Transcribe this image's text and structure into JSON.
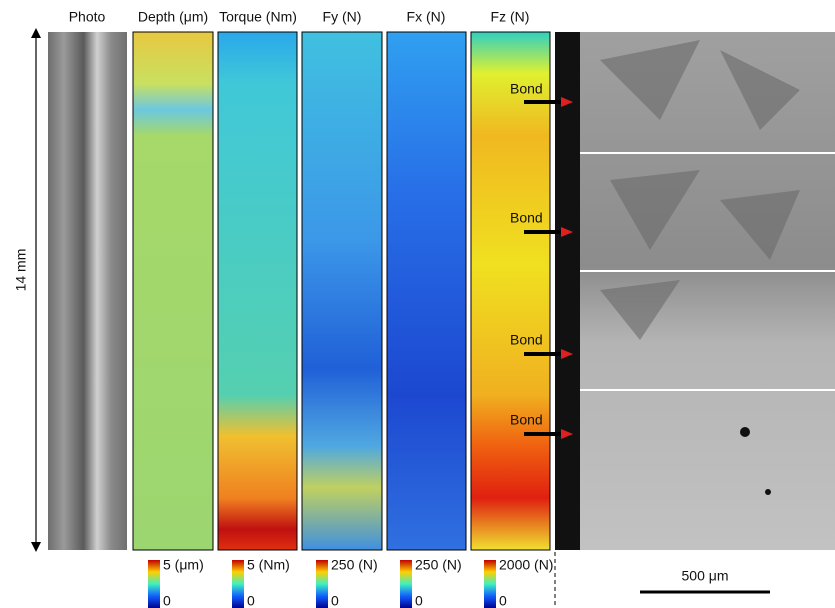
{
  "panels": [
    {
      "title": "Photo"
    },
    {
      "title": "Depth (μm)",
      "colorbar_max": "5 (μm)",
      "colorbar_min": "0"
    },
    {
      "title": "Torque (Nm)",
      "colorbar_max": "5 (Nm)",
      "colorbar_min": "0"
    },
    {
      "title": "Fy (N)",
      "colorbar_max": "250 (N)",
      "colorbar_min": "0"
    },
    {
      "title": "Fx (N)",
      "colorbar_max": "250 (N)",
      "colorbar_min": "0"
    },
    {
      "title": "Fz (N)",
      "colorbar_max": "2000 (N)",
      "colorbar_min": "0"
    }
  ],
  "length_label": "14 mm",
  "micrograph": {
    "annotations": [
      "Bond",
      "Bond",
      "Bond",
      "Bond"
    ],
    "scale_bar": "500 μm"
  }
}
